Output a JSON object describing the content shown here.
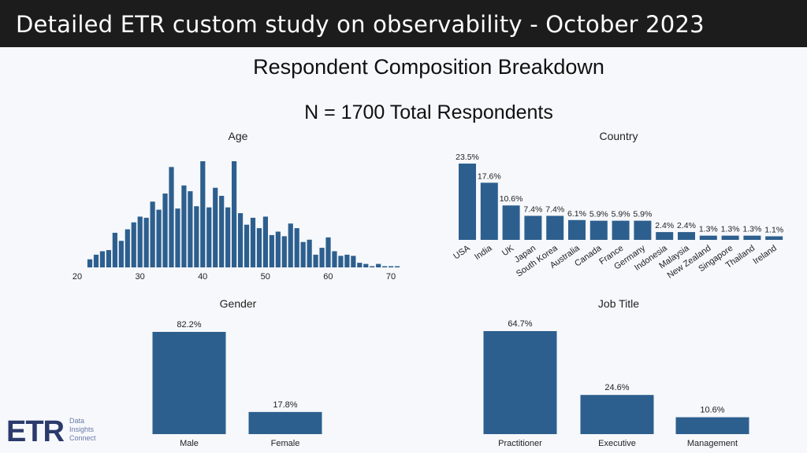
{
  "header": {
    "title": "Detailed ETR custom study on observability - October 2023"
  },
  "slide": {
    "title": "Respondent Composition Breakdown",
    "subtitle": "N = 1700 Total Respondents"
  },
  "logo": {
    "text": "ETR",
    "tagline": [
      "Data",
      "Insights",
      "Connect"
    ],
    "color": "#2b3a6b"
  },
  "colors": {
    "bar": "#2d5f8e"
  },
  "chart_data": [
    {
      "type": "bar",
      "title": "Age",
      "xlabel": "",
      "ylabel": "",
      "note": "histogram; counts estimated from bar heights",
      "xticks": [
        20,
        30,
        40,
        50,
        60,
        70
      ],
      "x": [
        22,
        23,
        24,
        25,
        26,
        27,
        28,
        29,
        30,
        31,
        32,
        33,
        34,
        35,
        36,
        37,
        38,
        39,
        40,
        41,
        42,
        43,
        44,
        45,
        46,
        47,
        48,
        49,
        50,
        51,
        52,
        53,
        54,
        55,
        56,
        57,
        58,
        59,
        60,
        61,
        62,
        63,
        64,
        65,
        66,
        67,
        68,
        69,
        70,
        71
      ],
      "values": [
        7,
        11,
        14,
        15,
        30,
        23,
        33,
        39,
        44,
        43,
        57,
        50,
        64,
        87,
        51,
        71,
        66,
        53,
        92,
        52,
        69,
        62,
        52,
        92,
        47,
        37,
        43,
        34,
        44,
        28,
        31,
        27,
        38,
        34,
        22,
        24,
        11,
        17,
        26,
        14,
        10,
        11,
        10,
        4,
        3,
        1,
        3,
        0,
        1,
        1
      ]
    },
    {
      "type": "bar",
      "title": "Country",
      "unit": "%",
      "categories": [
        "USA",
        "India",
        "UK",
        "Japan",
        "South Korea",
        "Australia",
        "Canada",
        "France",
        "Germany",
        "Indonesia",
        "Malaysia",
        "New Zealand",
        "Singapore",
        "Thailand",
        "Ireland"
      ],
      "values": [
        23.5,
        17.6,
        10.6,
        7.4,
        7.4,
        6.1,
        5.9,
        5.9,
        5.9,
        2.4,
        2.4,
        1.3,
        1.3,
        1.3,
        1.1
      ],
      "labels": [
        "23.5%",
        "17.6%",
        "10.6%",
        "7.4%",
        "7.4%",
        "6.1%",
        "5.9%",
        "5.9%",
        "5.9%",
        "2.4%",
        "2.4%",
        "1.3%",
        "1.3%",
        "1.3%",
        "1.1%"
      ]
    },
    {
      "type": "bar",
      "title": "Gender",
      "unit": "%",
      "categories": [
        "Male",
        "Female"
      ],
      "values": [
        82.2,
        17.8
      ],
      "labels": [
        "82.2%",
        "17.8%"
      ]
    },
    {
      "type": "bar",
      "title": "Job Title",
      "unit": "%",
      "categories": [
        "Practitioner",
        "Executive",
        "Management"
      ],
      "values": [
        64.7,
        24.6,
        10.6
      ],
      "labels": [
        "64.7%",
        "24.6%",
        "10.6%"
      ]
    }
  ]
}
